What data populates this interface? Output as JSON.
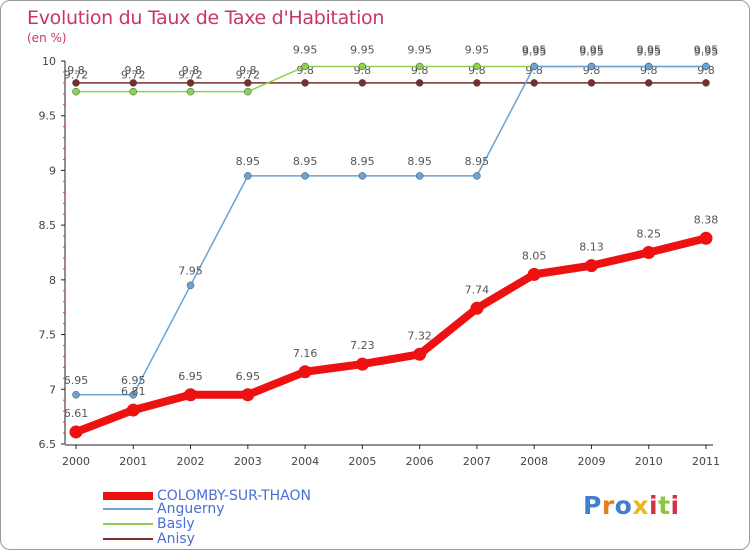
{
  "title": "Evolution du Taux de Taxe d'Habitation",
  "subtitle": "(en %)",
  "brand": "Proxiti",
  "chart_data": {
    "type": "line",
    "title": "Evolution du Taux de Taxe d'Habitation",
    "ylabel": "(en %)",
    "xlabel": "",
    "ylim": [
      6.5,
      10
    ],
    "yticks": [
      "6.5",
      "7",
      "7.5",
      "8",
      "8.5",
      "9",
      "9.5",
      "10"
    ],
    "categories": [
      "2000",
      "2001",
      "2002",
      "2003",
      "2004",
      "2005",
      "2006",
      "2007",
      "2008",
      "2009",
      "2010",
      "2011"
    ],
    "series": [
      {
        "name": "Anisy",
        "color": "#7a2d2d",
        "values": [
          9.8,
          9.8,
          9.8,
          9.8,
          9.8,
          9.8,
          9.8,
          9.8,
          9.8,
          9.8,
          9.8,
          9.8
        ],
        "labels": [
          "9.8",
          "9.8",
          "9.8",
          "9.8",
          "9.8",
          "9.8",
          "9.8",
          "9.8",
          "9.8",
          "9.8",
          "9.8",
          "9.8"
        ]
      },
      {
        "name": "Basly",
        "color": "#8fd14f",
        "values": [
          9.72,
          9.72,
          9.72,
          9.72,
          9.95,
          9.95,
          9.95,
          9.95,
          9.95,
          9.95,
          9.95,
          9.95
        ],
        "labels": [
          "9.72",
          "9.72",
          "9.72",
          "9.72",
          "9.95",
          "9.95",
          "9.95",
          "9.95",
          "9.95",
          "9.95",
          "9.95",
          "9.95"
        ]
      },
      {
        "name": "Anguerny",
        "color": "#6aa3d4",
        "values": [
          6.95,
          6.95,
          7.95,
          8.95,
          8.95,
          8.95,
          8.95,
          8.95,
          9.95,
          9.95,
          9.95,
          9.95
        ],
        "labels": [
          "6.95",
          "6.95",
          "7.95",
          "8.95",
          "8.95",
          "8.95",
          "8.95",
          "8.95",
          "9.95",
          "9.95",
          "9.95",
          "9.95"
        ]
      },
      {
        "name": "COLOMBY-SUR-THAON",
        "color": "#ee1111",
        "values": [
          6.61,
          6.81,
          6.95,
          6.95,
          7.16,
          7.23,
          7.32,
          7.74,
          8.05,
          8.13,
          8.25,
          8.38
        ],
        "labels": [
          "6.61",
          "6.81",
          "6.95",
          "6.95",
          "7.16",
          "7.23",
          "7.32",
          "7.74",
          "8.05",
          "8.13",
          "8.25",
          "8.38"
        ]
      }
    ],
    "legend": [
      {
        "name": "COLOMBY-SUR-THAON",
        "color": "#ee1111"
      },
      {
        "name": "Anguerny",
        "color": "#6aa3d4"
      },
      {
        "name": "Basly",
        "color": "#8fd14f"
      },
      {
        "name": "Anisy",
        "color": "#7a2d2d"
      }
    ],
    "legend_position": "bottom-left",
    "grid": false
  },
  "logo_colors": [
    "#3f7fd0",
    "#e87c1e",
    "#3f7fd0",
    "#e8b81e",
    "#d0343f",
    "#8fc63f",
    "#d0343f"
  ]
}
